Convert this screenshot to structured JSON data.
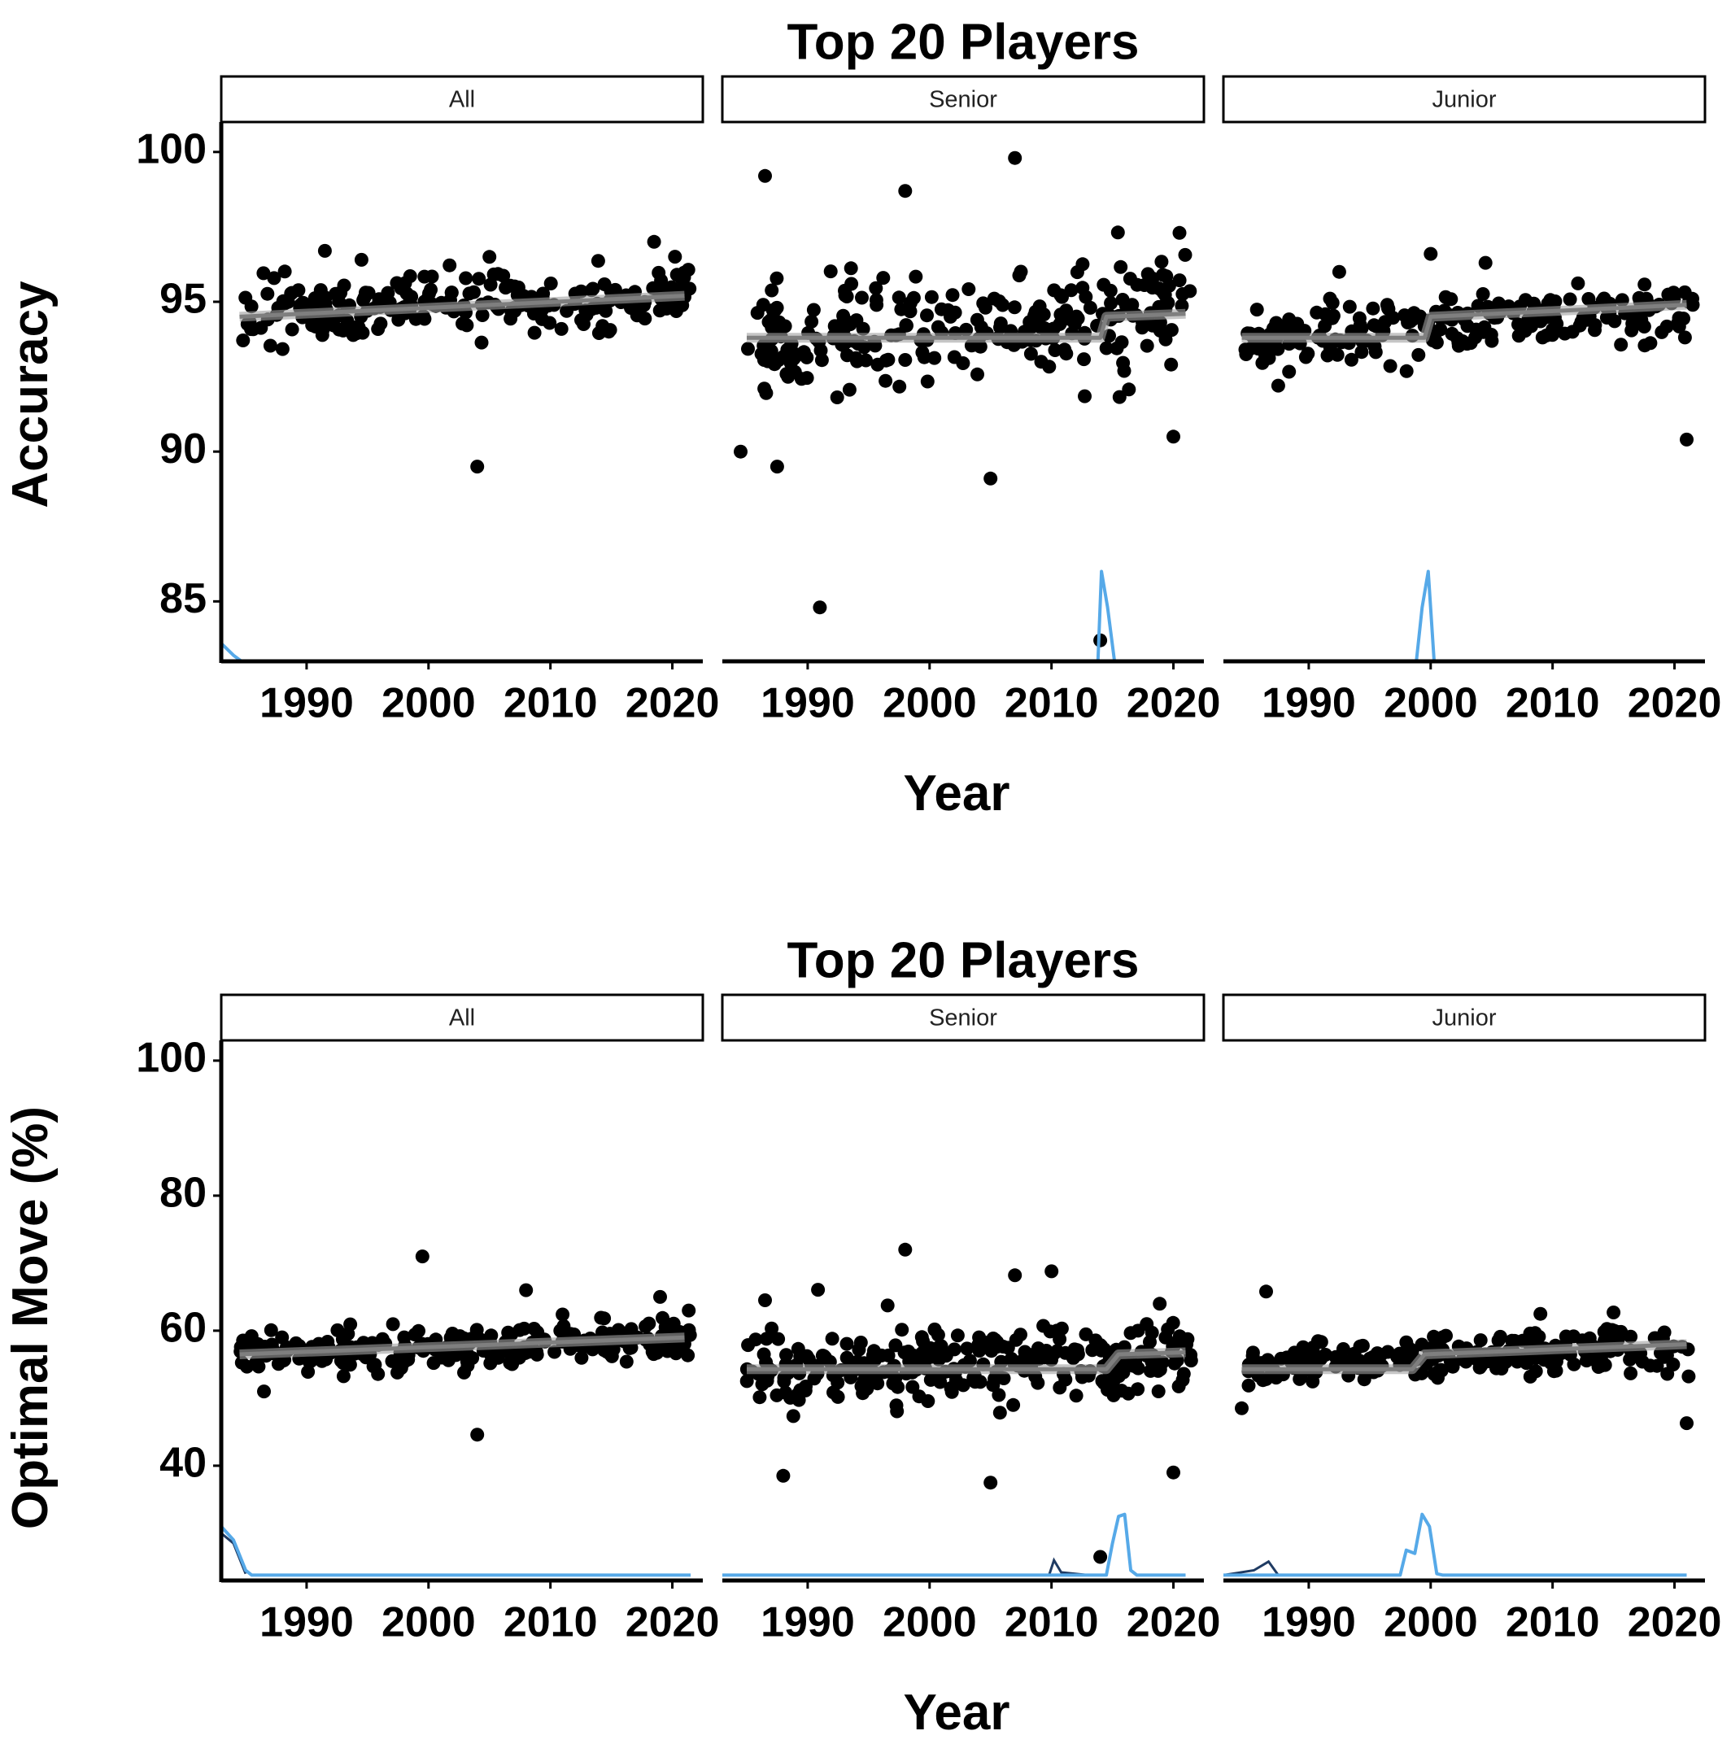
{
  "chart_data": [
    {
      "type": "scatter",
      "title": "Top 20 Players",
      "xlabel": "Year",
      "ylabel": "Accuracy",
      "xlim": [
        1983,
        2022.5
      ],
      "ylim": [
        83,
        101
      ],
      "x_ticks": [
        1990,
        2000,
        2010,
        2020
      ],
      "y_ticks": [
        85,
        90,
        95,
        100
      ],
      "grid": false,
      "legend": "none",
      "colors": {
        "points": "#000000",
        "trend": "#7f7f7f",
        "density": "#56a9e8",
        "density_dark": "#1f3b63"
      },
      "facets": [
        {
          "name": "All",
          "cloud": {
            "x_range": [
              1984.5,
              2021.5
            ],
            "center_start": 94.6,
            "center_end": 95.2,
            "spread": 0.9,
            "count": 230
          },
          "trend": [
            [
              1984.5,
              94.5
            ],
            [
              2021,
              95.2
            ]
          ],
          "outliers": [
            [
              1991.5,
              96.7
            ],
            [
              1994.5,
              96.4
            ],
            [
              2004,
              89.5
            ],
            [
              2005,
              96.5
            ],
            [
              2018.5,
              97.0
            ]
          ],
          "density": [
            [
              1983,
              83.6
            ],
            [
              1984,
              83.2
            ],
            [
              1985,
              82.9
            ],
            [
              2022,
              82.9
            ]
          ],
          "density_dark": []
        },
        {
          "name": "Senior",
          "cloud": {
            "x_range": [
              1985,
              2021.5
            ],
            "center_start": 93.8,
            "center_end": 94.6,
            "spread": 1.6,
            "count": 260
          },
          "trend": [
            [
              1985,
              93.8
            ],
            [
              2014,
              93.8
            ],
            [
              2014.5,
              94.5
            ],
            [
              2021,
              94.6
            ]
          ],
          "outliers": [
            [
              1986.5,
              99.2
            ],
            [
              1998,
              98.7
            ],
            [
              2007,
              99.8
            ],
            [
              1984.5,
              90.0
            ],
            [
              1987.5,
              89.5
            ],
            [
              1991,
              84.8
            ],
            [
              2005,
              89.1
            ],
            [
              2014,
              83.7
            ],
            [
              2020.5,
              97.3
            ],
            [
              2020,
              90.5
            ]
          ],
          "density": [
            [
              1983,
              82.9
            ],
            [
              2013.8,
              82.9
            ],
            [
              2014.1,
              86.0
            ],
            [
              2014.6,
              84.8
            ],
            [
              2015.2,
              82.9
            ],
            [
              2022,
              82.9
            ]
          ],
          "density_dark": []
        },
        {
          "name": "Junior",
          "cloud": {
            "x_range": [
              1984.5,
              2021.5
            ],
            "center_start": 93.8,
            "center_end": 94.8,
            "spread": 0.9,
            "count": 230
          },
          "trend": [
            [
              1984.5,
              93.8
            ],
            [
              1999.5,
              93.8
            ],
            [
              2000,
              94.5
            ],
            [
              2021,
              94.9
            ]
          ],
          "outliers": [
            [
              1992.5,
              96.0
            ],
            [
              2000,
              96.6
            ],
            [
              2004.5,
              96.3
            ],
            [
              1987.5,
              92.2
            ],
            [
              2021,
              90.4
            ]
          ],
          "density": [
            [
              1983,
              82.9
            ],
            [
              1998.8,
              82.9
            ],
            [
              1999.3,
              84.8
            ],
            [
              1999.8,
              86.0
            ],
            [
              2000.3,
              82.9
            ],
            [
              2022,
              82.9
            ]
          ],
          "density_dark": []
        }
      ]
    },
    {
      "type": "scatter",
      "title": "Top 20 Players",
      "xlabel": "Year",
      "ylabel": "Optimal Move (%)",
      "xlim": [
        1983,
        2022.5
      ],
      "ylim": [
        23,
        103
      ],
      "x_ticks": [
        1990,
        2000,
        2010,
        2020
      ],
      "y_ticks": [
        40,
        60,
        80,
        100
      ],
      "grid": false,
      "legend": "none",
      "colors": {
        "points": "#000000",
        "trend": "#7f7f7f",
        "density": "#56a9e8",
        "density_dark": "#1f3b63"
      },
      "facets": [
        {
          "name": "All",
          "cloud": {
            "x_range": [
              1984.5,
              2021.5
            ],
            "center_start": 56.5,
            "center_end": 58.8,
            "spread": 2.6,
            "count": 240
          },
          "trend": [
            [
              1984.5,
              56.5
            ],
            [
              2021,
              59.0
            ]
          ],
          "outliers": [
            [
              1999.5,
              71.0
            ],
            [
              2004,
              44.6
            ],
            [
              2008,
              66.0
            ],
            [
              2019,
              65.0
            ],
            [
              1986.5,
              51.0
            ]
          ],
          "density": [
            [
              1983,
              31.0
            ],
            [
              1984,
              29.0
            ],
            [
              1985,
              24.5
            ],
            [
              1985.5,
              23.8
            ],
            [
              2021.5,
              23.8
            ]
          ],
          "density_dark": [
            [
              1983,
              30.0
            ],
            [
              1984,
              28.5
            ],
            [
              1985,
              24.0
            ]
          ]
        },
        {
          "name": "Senior",
          "cloud": {
            "x_range": [
              1985,
              2021.5
            ],
            "center_start": 54.0,
            "center_end": 56.5,
            "spread": 5.0,
            "count": 280
          },
          "trend": [
            [
              1985,
              54.3
            ],
            [
              2014.5,
              54.3
            ],
            [
              2015.5,
              56.5
            ],
            [
              2021,
              56.8
            ]
          ],
          "outliers": [
            [
              1998,
              72.0
            ],
            [
              2010,
              68.8
            ],
            [
              2007,
              68.2
            ],
            [
              1988,
              38.5
            ],
            [
              2005,
              37.5
            ],
            [
              2020,
              39.0
            ],
            [
              2014,
              26.5
            ],
            [
              1986.5,
              64.5
            ]
          ],
          "density": [
            [
              1983,
              23.8
            ],
            [
              2014.5,
              23.8
            ],
            [
              2015,
              28.5
            ],
            [
              2015.5,
              32.5
            ],
            [
              2016,
              32.8
            ],
            [
              2016.5,
              24.5
            ],
            [
              2017,
              23.8
            ],
            [
              2021,
              23.8
            ]
          ],
          "density_dark": [
            [
              2009.8,
              23.8
            ],
            [
              2010.2,
              26.0
            ],
            [
              2010.8,
              24.2
            ],
            [
              2013,
              23.8
            ]
          ]
        },
        {
          "name": "Junior",
          "cloud": {
            "x_range": [
              1984.5,
              2021.5
            ],
            "center_start": 54.5,
            "center_end": 57.8,
            "spread": 2.6,
            "count": 240
          },
          "trend": [
            [
              1984.5,
              54.3
            ],
            [
              1998.5,
              54.3
            ],
            [
              1999.5,
              56.5
            ],
            [
              2021,
              58.0
            ]
          ],
          "outliers": [
            [
              1986.5,
              65.8
            ],
            [
              2021,
              46.3
            ],
            [
              1984.5,
              48.5
            ],
            [
              2009,
              62.5
            ],
            [
              2015,
              62.7
            ]
          ],
          "density": [
            [
              1983,
              23.8
            ],
            [
              1997.5,
              23.8
            ],
            [
              1998,
              27.5
            ],
            [
              1998.7,
              27.0
            ],
            [
              1999.3,
              32.8
            ],
            [
              1999.9,
              31.0
            ],
            [
              2000.5,
              24.0
            ],
            [
              2001,
              23.8
            ],
            [
              2021,
              23.8
            ]
          ],
          "density_dark": [
            [
              1983,
              23.8
            ],
            [
              1985.5,
              24.5
            ],
            [
              1986.7,
              25.8
            ],
            [
              1987.5,
              23.8
            ]
          ]
        }
      ]
    }
  ]
}
